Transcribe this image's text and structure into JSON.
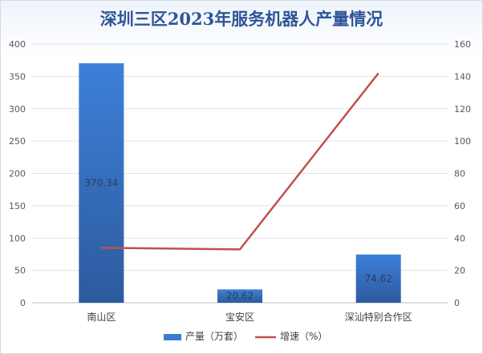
{
  "chart_data": {
    "type": "bar",
    "title": "深圳三区2023年服务机器人产量情况",
    "categories": [
      "南山区",
      "宝安区",
      "深汕特别合作区"
    ],
    "series": [
      {
        "name": "产量（万套）",
        "type": "bar",
        "axis": "left",
        "values": [
          370.34,
          20.62,
          74.62
        ],
        "color": "#3a7bd5"
      },
      {
        "name": "增速（%）",
        "type": "line",
        "axis": "right",
        "values": [
          34,
          33,
          142
        ],
        "color": "#c0504d"
      }
    ],
    "data_labels": [
      "370.34",
      "20.62",
      "74.62"
    ],
    "ylim_left": [
      0,
      400
    ],
    "ylim_right": [
      0,
      160
    ],
    "yticks_left": [
      0,
      50,
      100,
      150,
      200,
      250,
      300,
      350,
      400
    ],
    "yticks_right": [
      0,
      20,
      40,
      60,
      80,
      100,
      120,
      140,
      160
    ],
    "grid": true,
    "legend_position": "bottom"
  }
}
